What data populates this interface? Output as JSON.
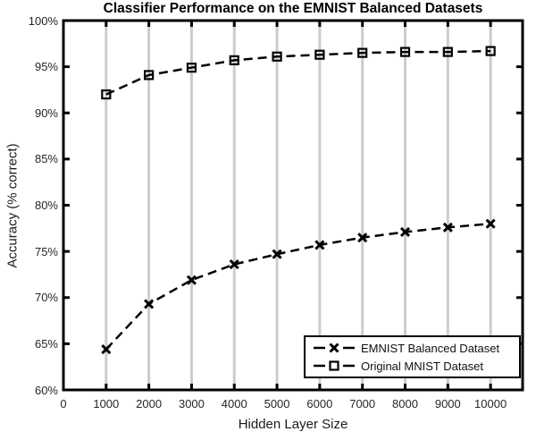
{
  "chart_data": {
    "type": "line",
    "title": "Classifier Performance on the EMNIST Balanced Datasets",
    "xlabel": "Hidden Layer Size",
    "ylabel": "Accuracy (% correct)",
    "x": [
      1000,
      2000,
      3000,
      4000,
      5000,
      6000,
      7000,
      8000,
      9000,
      10000
    ],
    "series": [
      {
        "name": "EMNIST Balanced Dataset",
        "marker": "x",
        "linestyle": "dashed",
        "color": "#000000",
        "values": [
          64.4,
          69.3,
          71.9,
          73.6,
          74.7,
          75.7,
          76.5,
          77.1,
          77.6,
          78.0
        ]
      },
      {
        "name": "Original MNIST Dataset",
        "marker": "square",
        "linestyle": "dashed",
        "color": "#000000",
        "values": [
          92.0,
          94.1,
          94.9,
          95.7,
          96.1,
          96.3,
          96.5,
          96.6,
          96.6,
          96.7
        ]
      }
    ],
    "x_ticks": [
      0,
      1000,
      2000,
      3000,
      4000,
      5000,
      6000,
      7000,
      8000,
      9000,
      10000
    ],
    "x_tick_labels": [
      "0",
      "1000",
      "2000",
      "3000",
      "4000",
      "5000",
      "6000",
      "7000",
      "8000",
      "9000",
      "10000"
    ],
    "y_ticks": [
      60,
      65,
      70,
      75,
      80,
      85,
      90,
      95,
      100
    ],
    "y_tick_labels": [
      "60%",
      "65%",
      "70%",
      "75%",
      "80%",
      "85%",
      "90%",
      "95%",
      "100%"
    ],
    "xlim": [
      0,
      10750
    ],
    "ylim": [
      60,
      100
    ],
    "grid": "vertical-only",
    "legend_position": "lower-right",
    "colors": {
      "background": "#ffffff",
      "gridline": "#cccccc",
      "axis": "#000000",
      "line": "#000000",
      "tick_text": "#262626"
    }
  }
}
